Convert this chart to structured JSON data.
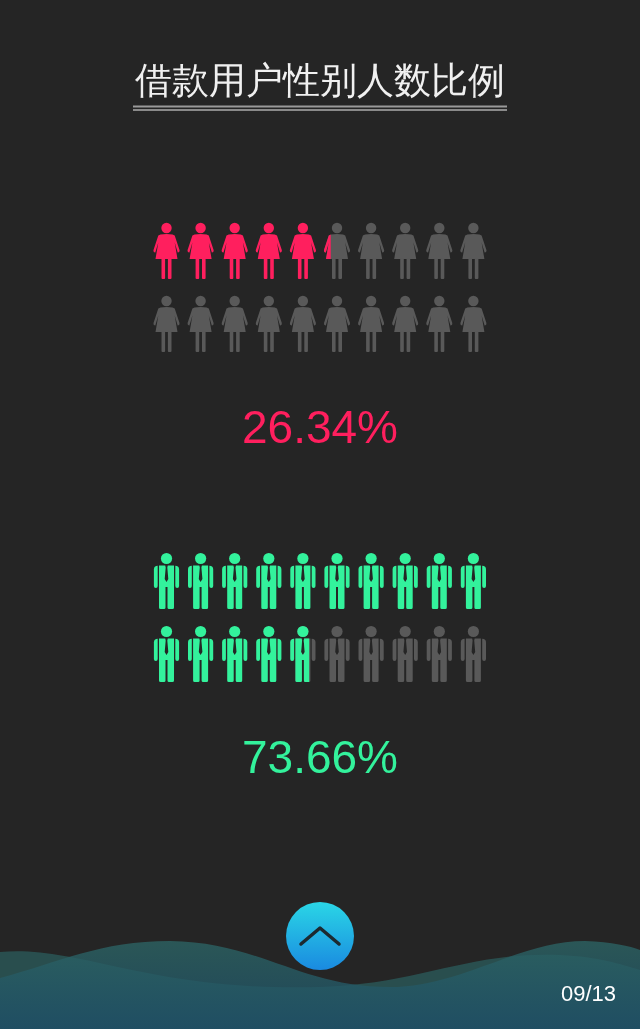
{
  "chart_data": {
    "type": "other",
    "title": "借款用户性别人数比例",
    "categories": [
      null,
      null
    ],
    "values": [
      26.34,
      73.66
    ],
    "colors": [
      "#ff1f5e",
      "#33f29c"
    ],
    "value_labels": [
      "26.34%",
      "73.66%"
    ],
    "annotations": [
      "09/13"
    ]
  }
}
